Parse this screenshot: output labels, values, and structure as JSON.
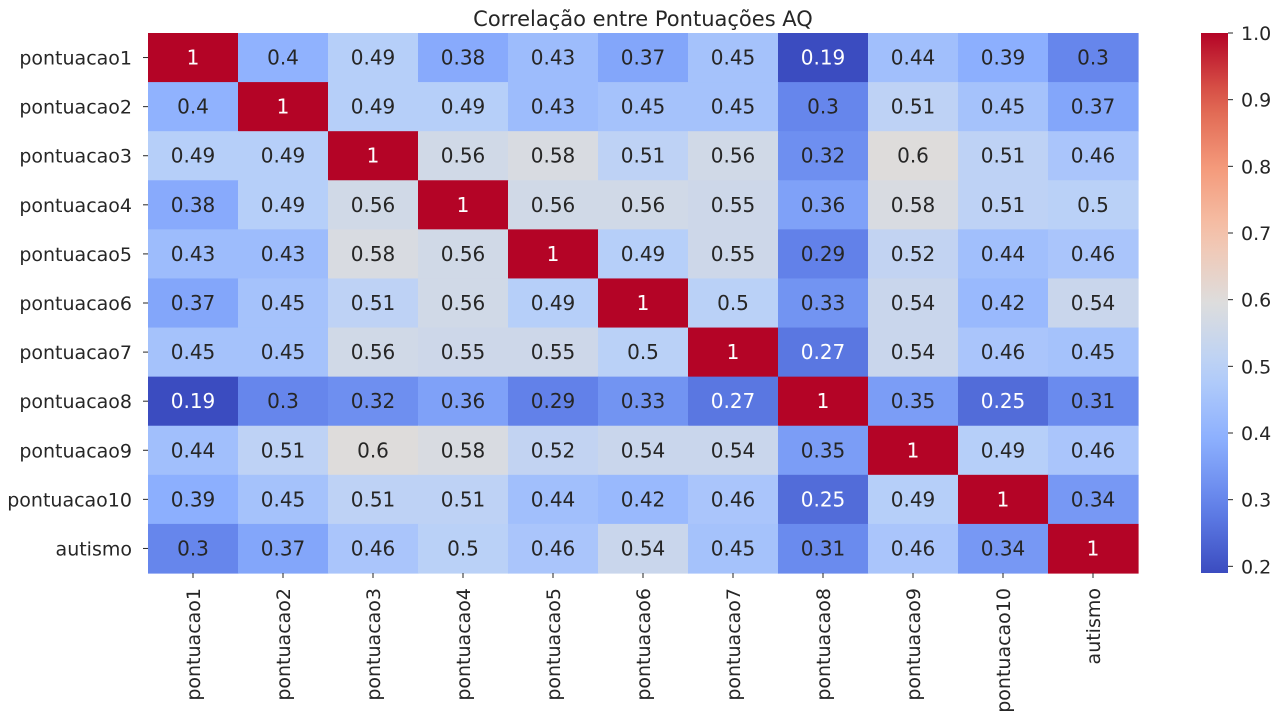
{
  "chart_data": {
    "type": "heatmap",
    "title": "Correlação entre Pontuações AQ",
    "labels": [
      "pontuacao1",
      "pontuacao2",
      "pontuacao3",
      "pontuacao4",
      "pontuacao5",
      "pontuacao6",
      "pontuacao7",
      "pontuacao8",
      "pontuacao9",
      "pontuacao10",
      "autismo"
    ],
    "matrix": [
      [
        1,
        0.4,
        0.49,
        0.38,
        0.43,
        0.37,
        0.45,
        0.19,
        0.44,
        0.39,
        0.3
      ],
      [
        0.4,
        1,
        0.49,
        0.49,
        0.43,
        0.45,
        0.45,
        0.3,
        0.51,
        0.45,
        0.37
      ],
      [
        0.49,
        0.49,
        1,
        0.56,
        0.58,
        0.51,
        0.56,
        0.32,
        0.6,
        0.51,
        0.46
      ],
      [
        0.38,
        0.49,
        0.56,
        1,
        0.56,
        0.56,
        0.55,
        0.36,
        0.58,
        0.51,
        0.5
      ],
      [
        0.43,
        0.43,
        0.58,
        0.56,
        1,
        0.49,
        0.55,
        0.29,
        0.52,
        0.44,
        0.46
      ],
      [
        0.37,
        0.45,
        0.51,
        0.56,
        0.49,
        1,
        0.5,
        0.33,
        0.54,
        0.42,
        0.54
      ],
      [
        0.45,
        0.45,
        0.56,
        0.55,
        0.55,
        0.5,
        1,
        0.27,
        0.54,
        0.46,
        0.45
      ],
      [
        0.19,
        0.3,
        0.32,
        0.36,
        0.29,
        0.33,
        0.27,
        1,
        0.35,
        0.25,
        0.31
      ],
      [
        0.44,
        0.51,
        0.6,
        0.58,
        0.52,
        0.54,
        0.54,
        0.35,
        1,
        0.49,
        0.46
      ],
      [
        0.39,
        0.45,
        0.51,
        0.51,
        0.44,
        0.42,
        0.46,
        0.25,
        0.49,
        1,
        0.34
      ],
      [
        0.3,
        0.37,
        0.46,
        0.5,
        0.46,
        0.54,
        0.45,
        0.31,
        0.46,
        0.34,
        1
      ]
    ],
    "colormap": "coolwarm",
    "vmin": 0.19,
    "vmax": 1.0,
    "colorbar_ticks": [
      "0.2",
      "0.3",
      "0.4",
      "0.5",
      "0.6",
      "0.7",
      "0.8",
      "0.9",
      "1.0"
    ],
    "annotations": true,
    "grid": false
  }
}
